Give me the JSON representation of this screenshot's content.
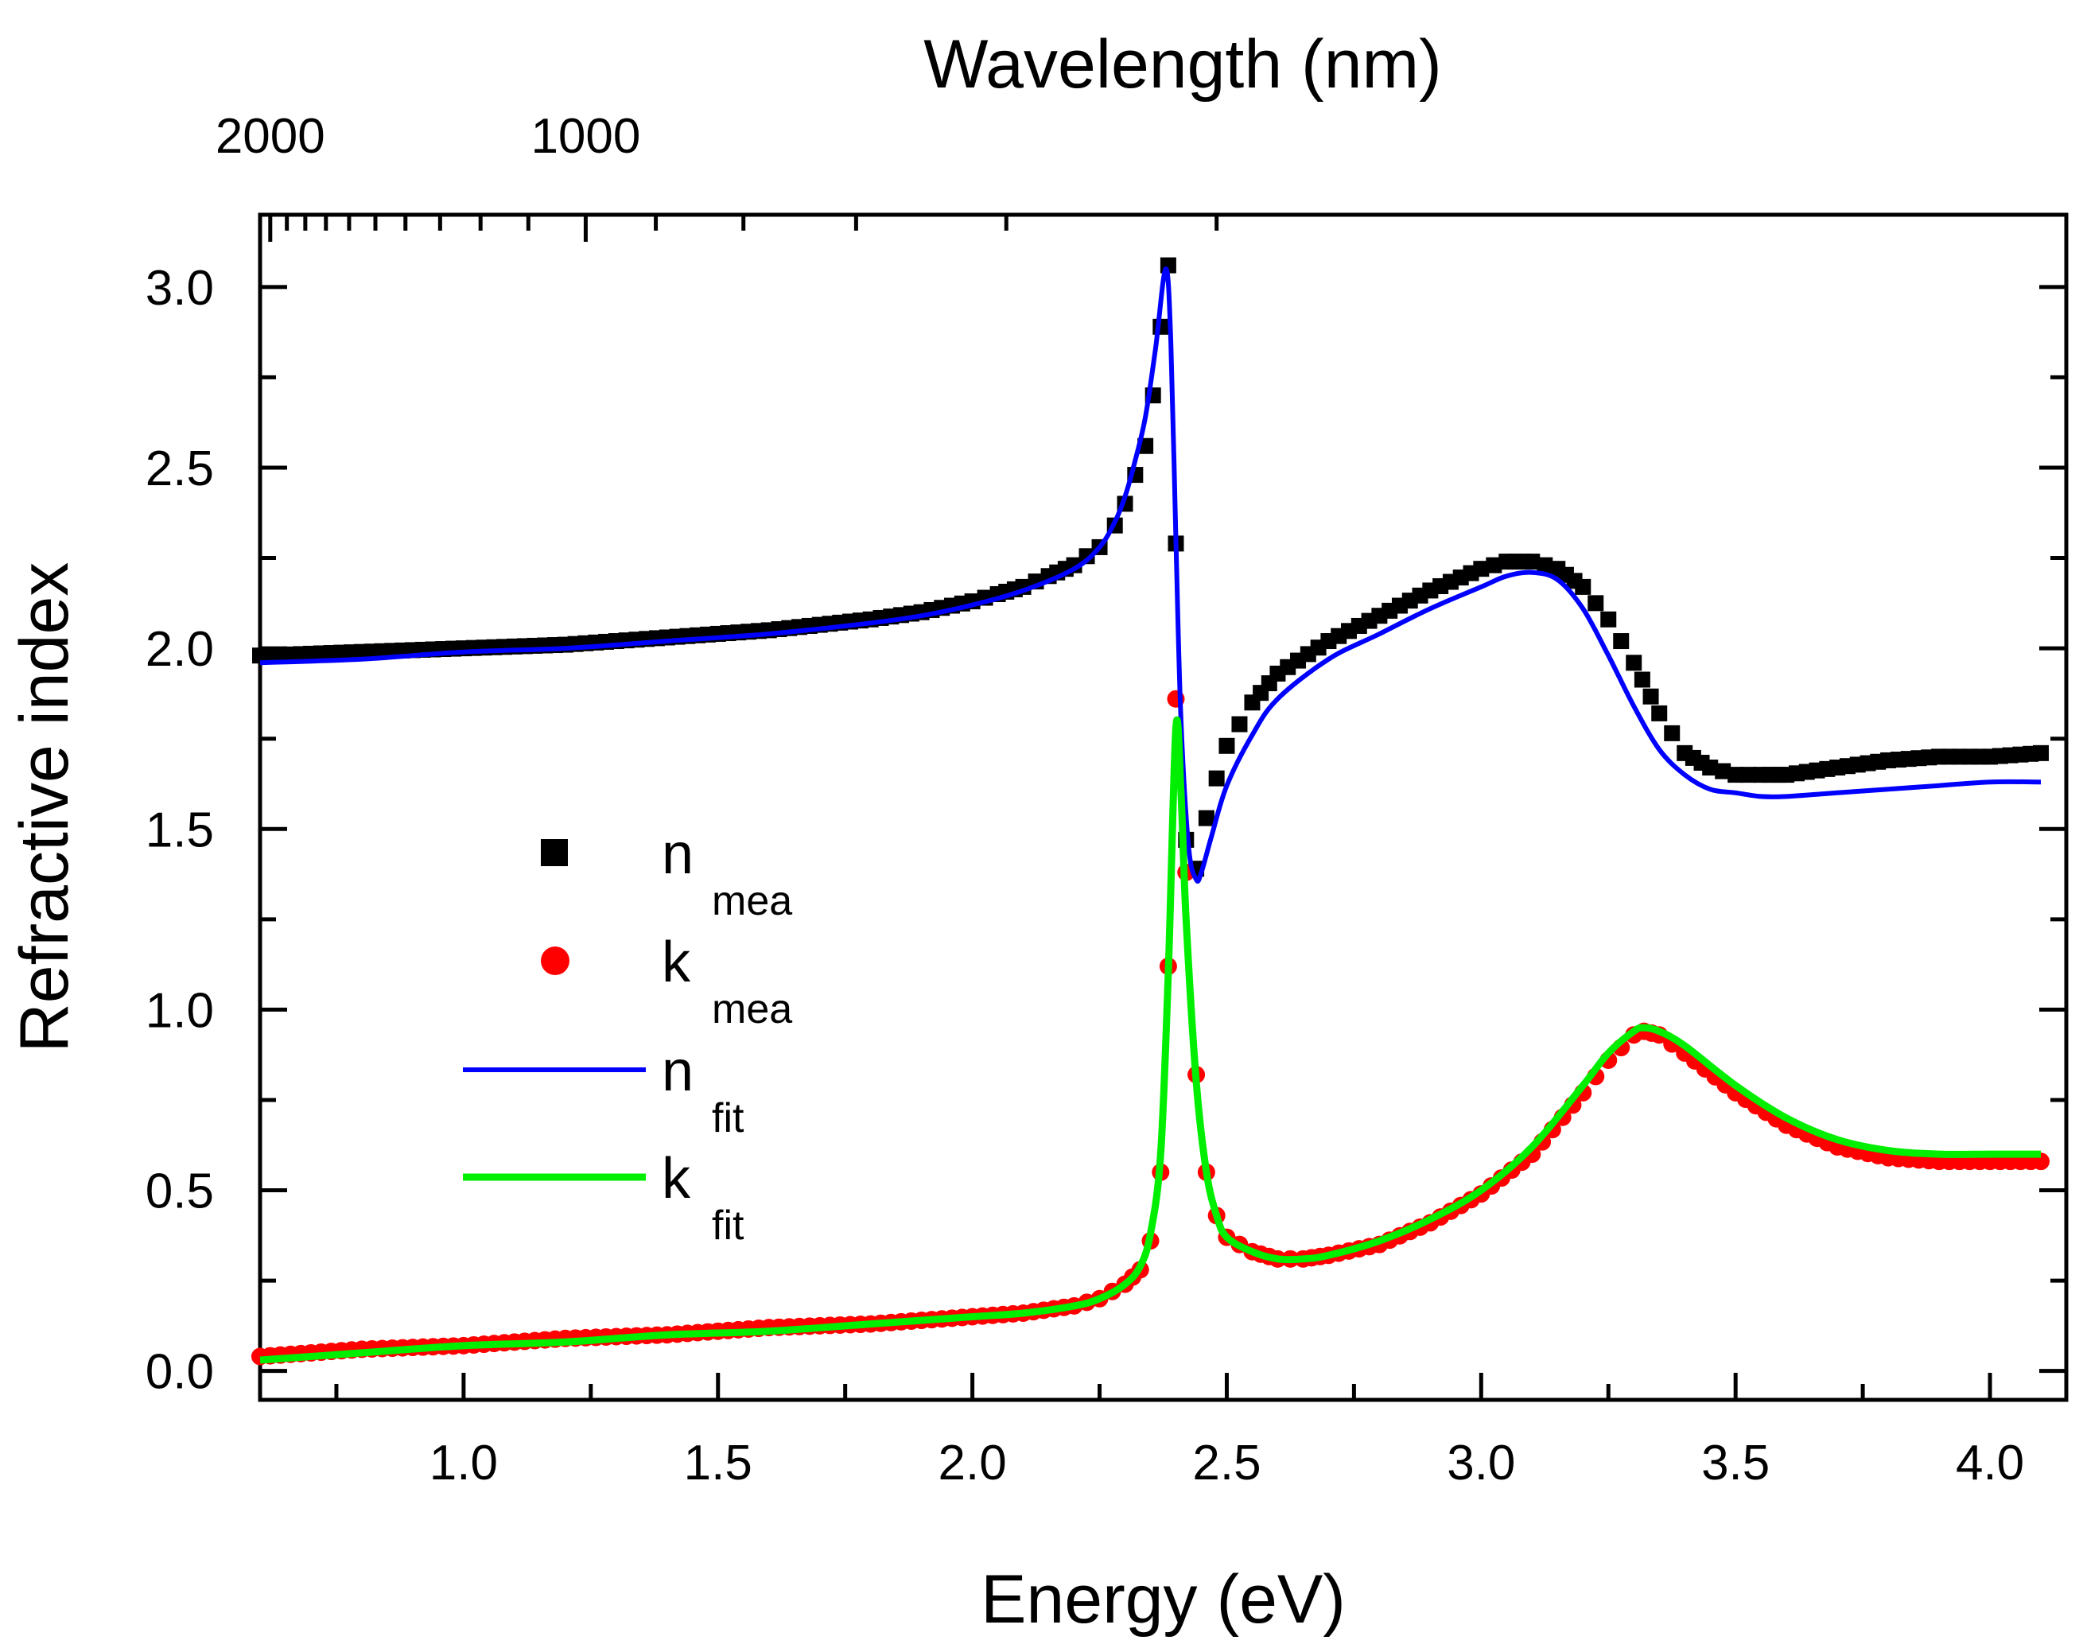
{
  "chart_data": {
    "type": "line",
    "xlabel": "Energy (eV)",
    "ylabel": "Refractive index",
    "top_xlabel": "Wavelength (nm)",
    "xlim": [
      0.6,
      4.15
    ],
    "ylim": [
      -0.08,
      3.2
    ],
    "x_ticks": [
      1.0,
      1.5,
      2.0,
      2.5,
      3.0,
      3.5,
      4.0
    ],
    "x_tick_labels": [
      "1.0",
      "1.5",
      "2.0",
      "2.5",
      "3.0",
      "3.5",
      "4.0"
    ],
    "y_ticks": [
      0.0,
      0.5,
      1.0,
      1.5,
      2.0,
      2.5,
      3.0
    ],
    "y_tick_labels": [
      "0.0",
      "0.5",
      "1.0",
      "1.5",
      "2.0",
      "2.5",
      "3.0"
    ],
    "top_ticks": [
      {
        "energy": 0.62,
        "label": "2000"
      },
      {
        "energy": 1.24,
        "label": "1000"
      }
    ],
    "grid": false,
    "legend_position": "center-left",
    "legend": [
      {
        "key": "n_mea",
        "main": "n",
        "sub": "mea",
        "symbol": "square",
        "color": "#000000"
      },
      {
        "key": "k_mea",
        "main": "k",
        "sub": "mea",
        "symbol": "circle",
        "color": "#ff0000"
      },
      {
        "key": "n_fit",
        "main": "n",
        "sub": "fit",
        "symbol": "line",
        "color": "#0000ff"
      },
      {
        "key": "k_fit",
        "main": "k",
        "sub": "fit",
        "symbol": "line",
        "color": "#00ee00"
      }
    ],
    "series": [
      {
        "name": "n_mea",
        "kind": "markers",
        "marker": "square",
        "color": "#000000",
        "points": [
          [
            0.6,
            1.98
          ],
          [
            0.8,
            1.99
          ],
          [
            1.0,
            2.0
          ],
          [
            1.2,
            2.01
          ],
          [
            1.4,
            2.03
          ],
          [
            1.6,
            2.05
          ],
          [
            1.8,
            2.08
          ],
          [
            1.9,
            2.1
          ],
          [
            2.0,
            2.13
          ],
          [
            2.05,
            2.15
          ],
          [
            2.1,
            2.17
          ],
          [
            2.15,
            2.2
          ],
          [
            2.2,
            2.23
          ],
          [
            2.25,
            2.28
          ],
          [
            2.28,
            2.34
          ],
          [
            2.3,
            2.4
          ],
          [
            2.32,
            2.48
          ],
          [
            2.34,
            2.56
          ],
          [
            2.355,
            2.7
          ],
          [
            2.37,
            2.89
          ],
          [
            2.385,
            3.06
          ],
          [
            2.4,
            2.29
          ],
          [
            2.42,
            1.47
          ],
          [
            2.44,
            1.39
          ],
          [
            2.46,
            1.53
          ],
          [
            2.48,
            1.64
          ],
          [
            2.5,
            1.73
          ],
          [
            2.55,
            1.85
          ],
          [
            2.6,
            1.93
          ],
          [
            2.7,
            2.02
          ],
          [
            2.8,
            2.09
          ],
          [
            2.9,
            2.16
          ],
          [
            3.0,
            2.22
          ],
          [
            3.05,
            2.24
          ],
          [
            3.1,
            2.24
          ],
          [
            3.15,
            2.22
          ],
          [
            3.2,
            2.17
          ],
          [
            3.25,
            2.08
          ],
          [
            3.3,
            1.96
          ],
          [
            3.35,
            1.82
          ],
          [
            3.4,
            1.71
          ],
          [
            3.45,
            1.67
          ],
          [
            3.5,
            1.65
          ],
          [
            3.55,
            1.65
          ],
          [
            3.6,
            1.65
          ],
          [
            3.7,
            1.67
          ],
          [
            3.8,
            1.69
          ],
          [
            3.9,
            1.7
          ],
          [
            4.0,
            1.7
          ],
          [
            4.1,
            1.71
          ]
        ]
      },
      {
        "name": "k_mea",
        "kind": "markers",
        "marker": "circle",
        "color": "#ff0000",
        "points": [
          [
            0.6,
            0.04
          ],
          [
            0.8,
            0.06
          ],
          [
            1.0,
            0.07
          ],
          [
            1.2,
            0.09
          ],
          [
            1.4,
            0.1
          ],
          [
            1.6,
            0.12
          ],
          [
            1.8,
            0.13
          ],
          [
            2.0,
            0.15
          ],
          [
            2.1,
            0.16
          ],
          [
            2.2,
            0.18
          ],
          [
            2.25,
            0.2
          ],
          [
            2.3,
            0.24
          ],
          [
            2.33,
            0.28
          ],
          [
            2.35,
            0.36
          ],
          [
            2.37,
            0.55
          ],
          [
            2.385,
            1.12
          ],
          [
            2.4,
            1.86
          ],
          [
            2.42,
            1.38
          ],
          [
            2.44,
            0.82
          ],
          [
            2.46,
            0.55
          ],
          [
            2.48,
            0.43
          ],
          [
            2.5,
            0.37
          ],
          [
            2.55,
            0.33
          ],
          [
            2.6,
            0.31
          ],
          [
            2.65,
            0.31
          ],
          [
            2.7,
            0.32
          ],
          [
            2.8,
            0.35
          ],
          [
            2.9,
            0.41
          ],
          [
            3.0,
            0.49
          ],
          [
            3.1,
            0.6
          ],
          [
            3.2,
            0.77
          ],
          [
            3.25,
            0.86
          ],
          [
            3.3,
            0.93
          ],
          [
            3.32,
            0.94
          ],
          [
            3.35,
            0.93
          ],
          [
            3.4,
            0.88
          ],
          [
            3.5,
            0.77
          ],
          [
            3.6,
            0.68
          ],
          [
            3.7,
            0.62
          ],
          [
            3.8,
            0.59
          ],
          [
            3.9,
            0.58
          ],
          [
            4.0,
            0.58
          ],
          [
            4.1,
            0.58
          ]
        ]
      },
      {
        "name": "n_fit",
        "kind": "line",
        "color": "#0000ff",
        "points": [
          [
            0.6,
            1.96
          ],
          [
            0.8,
            1.97
          ],
          [
            1.0,
            1.99
          ],
          [
            1.2,
            2.0
          ],
          [
            1.4,
            2.02
          ],
          [
            1.6,
            2.04
          ],
          [
            1.8,
            2.07
          ],
          [
            1.9,
            2.09
          ],
          [
            2.0,
            2.12
          ],
          [
            2.1,
            2.16
          ],
          [
            2.2,
            2.22
          ],
          [
            2.25,
            2.28
          ],
          [
            2.28,
            2.35
          ],
          [
            2.3,
            2.42
          ],
          [
            2.32,
            2.52
          ],
          [
            2.34,
            2.64
          ],
          [
            2.36,
            2.83
          ],
          [
            2.38,
            3.05
          ],
          [
            2.39,
            2.85
          ],
          [
            2.4,
            2.3
          ],
          [
            2.41,
            1.8
          ],
          [
            2.425,
            1.45
          ],
          [
            2.44,
            1.36
          ],
          [
            2.45,
            1.38
          ],
          [
            2.47,
            1.48
          ],
          [
            2.5,
            1.62
          ],
          [
            2.55,
            1.76
          ],
          [
            2.6,
            1.86
          ],
          [
            2.7,
            1.97
          ],
          [
            2.8,
            2.04
          ],
          [
            2.9,
            2.11
          ],
          [
            3.0,
            2.17
          ],
          [
            3.05,
            2.2
          ],
          [
            3.1,
            2.21
          ],
          [
            3.15,
            2.19
          ],
          [
            3.2,
            2.11
          ],
          [
            3.25,
            1.98
          ],
          [
            3.3,
            1.84
          ],
          [
            3.35,
            1.72
          ],
          [
            3.4,
            1.65
          ],
          [
            3.45,
            1.61
          ],
          [
            3.5,
            1.6
          ],
          [
            3.55,
            1.59
          ],
          [
            3.6,
            1.59
          ],
          [
            3.7,
            1.6
          ],
          [
            3.8,
            1.61
          ],
          [
            3.9,
            1.62
          ],
          [
            4.0,
            1.63
          ],
          [
            4.1,
            1.63
          ]
        ]
      },
      {
        "name": "k_fit",
        "kind": "line",
        "color": "#00ee00",
        "points": [
          [
            0.6,
            0.03
          ],
          [
            0.8,
            0.05
          ],
          [
            1.0,
            0.07
          ],
          [
            1.2,
            0.08
          ],
          [
            1.4,
            0.1
          ],
          [
            1.6,
            0.11
          ],
          [
            1.8,
            0.13
          ],
          [
            2.0,
            0.15
          ],
          [
            2.1,
            0.16
          ],
          [
            2.2,
            0.18
          ],
          [
            2.25,
            0.2
          ],
          [
            2.3,
            0.24
          ],
          [
            2.33,
            0.29
          ],
          [
            2.35,
            0.38
          ],
          [
            2.37,
            0.6
          ],
          [
            2.385,
            1.1
          ],
          [
            2.4,
            1.78
          ],
          [
            2.41,
            1.6
          ],
          [
            2.42,
            1.25
          ],
          [
            2.44,
            0.8
          ],
          [
            2.46,
            0.55
          ],
          [
            2.48,
            0.43
          ],
          [
            2.5,
            0.37
          ],
          [
            2.55,
            0.33
          ],
          [
            2.6,
            0.31
          ],
          [
            2.65,
            0.31
          ],
          [
            2.7,
            0.32
          ],
          [
            2.8,
            0.36
          ],
          [
            2.9,
            0.42
          ],
          [
            3.0,
            0.5
          ],
          [
            3.1,
            0.62
          ],
          [
            3.2,
            0.79
          ],
          [
            3.25,
            0.88
          ],
          [
            3.3,
            0.94
          ],
          [
            3.32,
            0.95
          ],
          [
            3.35,
            0.94
          ],
          [
            3.4,
            0.9
          ],
          [
            3.5,
            0.79
          ],
          [
            3.6,
            0.7
          ],
          [
            3.7,
            0.64
          ],
          [
            3.8,
            0.61
          ],
          [
            3.9,
            0.6
          ],
          [
            4.0,
            0.6
          ],
          [
            4.1,
            0.6
          ]
        ]
      }
    ]
  }
}
